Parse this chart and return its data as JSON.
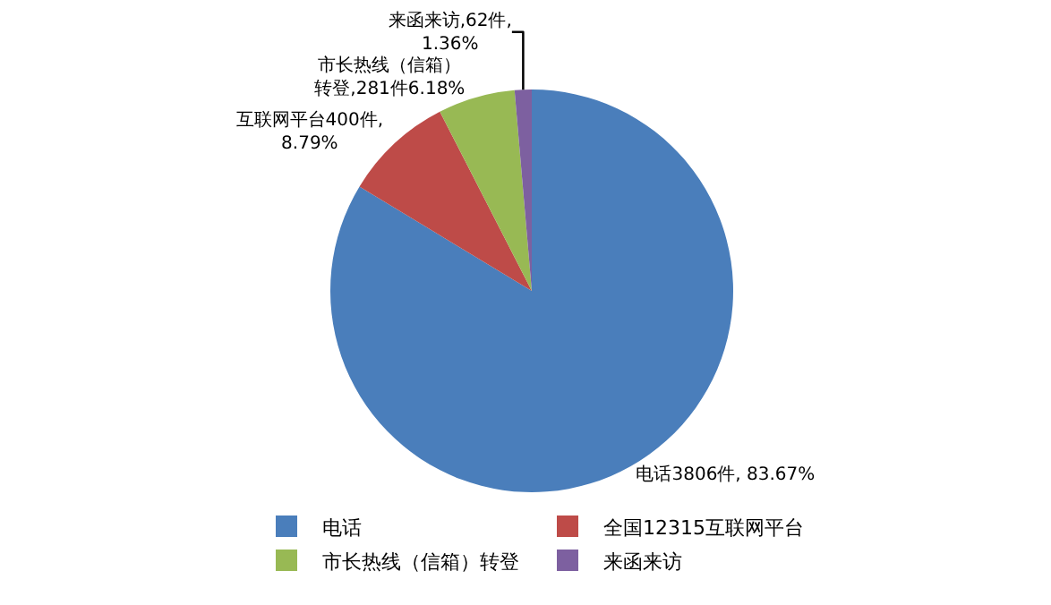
{
  "chart_data": {
    "type": "pie",
    "categories": [
      "电话",
      "全国12315互联网平台",
      "市长热线（信箱）转登",
      "来函来访"
    ],
    "values": [
      3806,
      400,
      281,
      62
    ],
    "colors": [
      "#4a7ebb",
      "#be4b48",
      "#98b954",
      "#7d60a0"
    ],
    "value_labels": [
      "电话3806件, 83.67%",
      "互联网平台400件,\n8.79%",
      "市长热线（信箱）转登,281件6.18%",
      "来函来访,62件,\n1.36%"
    ],
    "legend": "bottom"
  }
}
